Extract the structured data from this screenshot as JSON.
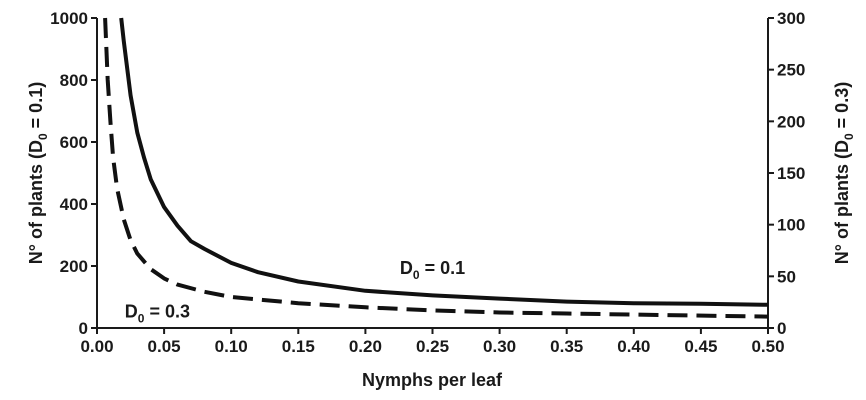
{
  "chart_data": {
    "type": "line",
    "xlabel": "Nymphs per leaf",
    "ylabel_left": {
      "main": "N° of plants (D",
      "sub": "0",
      "tail": " = 0.1)"
    },
    "ylabel_right": {
      "main": "N° of plants (D",
      "sub": "0",
      "tail": " = 0.3)"
    },
    "xlim": [
      0,
      0.5
    ],
    "ylim_left": [
      0,
      1000
    ],
    "ylim_right": [
      0,
      300
    ],
    "x_ticks": [
      "0.00",
      "0.05",
      "0.10",
      "0.15",
      "0.20",
      "0.25",
      "0.30",
      "0.35",
      "0.40",
      "0.45",
      "0.50"
    ],
    "y_ticks_left": [
      "0",
      "200",
      "400",
      "600",
      "800",
      "1000"
    ],
    "y_ticks_right": [
      "0",
      "50",
      "100",
      "150",
      "200",
      "250",
      "300"
    ],
    "grid": false,
    "series": [
      {
        "name": "D0 = 0.1",
        "axis": "left",
        "style": "solid",
        "color": "#111111",
        "x": [
          0.018,
          0.02,
          0.025,
          0.03,
          0.035,
          0.04,
          0.05,
          0.06,
          0.07,
          0.08,
          0.1,
          0.12,
          0.15,
          0.2,
          0.25,
          0.3,
          0.35,
          0.4,
          0.45,
          0.5
        ],
        "y": [
          1000,
          925,
          750,
          630,
          550,
          480,
          390,
          330,
          280,
          255,
          210,
          180,
          150,
          120,
          105,
          95,
          85,
          80,
          78,
          75
        ]
      },
      {
        "name": "D0 = 0.3",
        "axis": "right",
        "style": "dashed",
        "color": "#111111",
        "x": [
          0.006,
          0.008,
          0.01,
          0.012,
          0.015,
          0.02,
          0.025,
          0.03,
          0.04,
          0.05,
          0.06,
          0.08,
          0.1,
          0.15,
          0.2,
          0.25,
          0.3,
          0.35,
          0.4,
          0.5
        ],
        "y": [
          300,
          240,
          200,
          165,
          135,
          105,
          85,
          72,
          57,
          48,
          42,
          35,
          30,
          24,
          20,
          17,
          15,
          14,
          13,
          11
        ]
      }
    ],
    "annotations": [
      {
        "main": "D",
        "sub": "0",
        "tail": " = 0.1",
        "x": 0.25,
        "y": 175,
        "axis": "left"
      },
      {
        "main": "D",
        "sub": "0",
        "tail": " = 0.3",
        "x": 0.045,
        "y": 10,
        "axis": "right"
      }
    ]
  }
}
